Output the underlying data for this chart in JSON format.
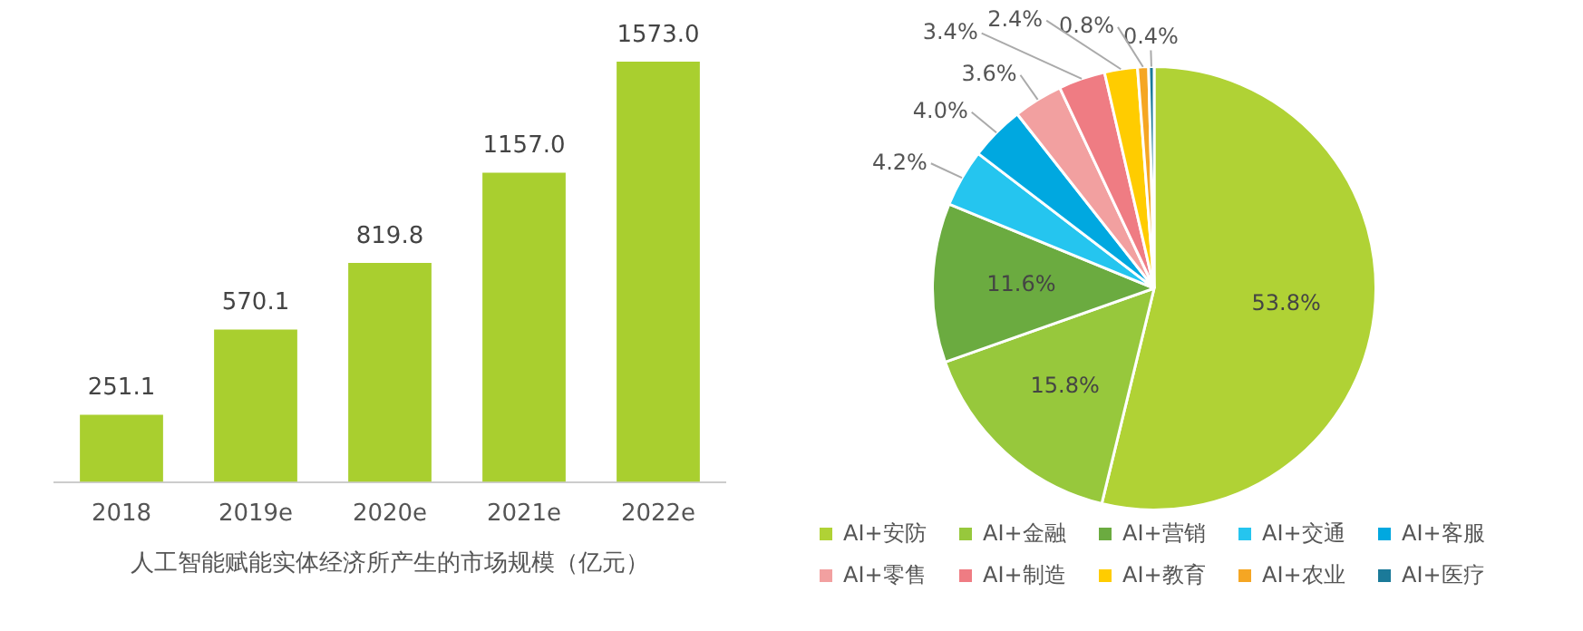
{
  "chart_data": [
    {
      "type": "bar",
      "xlabel": "人工智能赋能实体经济所产生的市场规模（亿元）",
      "categories": [
        "2018",
        "2019e",
        "2020e",
        "2021e",
        "2022e"
      ],
      "values": [
        251.1,
        570.1,
        819.8,
        1157.0,
        1573.0
      ],
      "value_labels": [
        "251.1",
        "570.1",
        "819.8",
        "1157.0",
        "1573.0"
      ],
      "color": "#a9cf2f"
    },
    {
      "type": "pie",
      "categories": [
        "AI+安防",
        "AI+金融",
        "AI+营销",
        "AI+交通",
        "AI+客服",
        "AI+零售",
        "AI+制造",
        "AI+教育",
        "AI+农业",
        "AI+医疗"
      ],
      "values": [
        53.8,
        15.8,
        11.6,
        4.2,
        4.0,
        3.6,
        3.4,
        2.4,
        0.8,
        0.4
      ],
      "value_labels": [
        "53.8%",
        "15.8%",
        "11.6%",
        "4.2%",
        "4.0%",
        "3.6%",
        "3.4%",
        "2.4%",
        "0.8%",
        "0.4%"
      ],
      "colors": [
        "#b0d235",
        "#97c83c",
        "#6bab40",
        "#25c5ef",
        "#00a8e0",
        "#f2a0a0",
        "#ef7c83",
        "#ffcc00",
        "#f5a623",
        "#1b7a99"
      ],
      "legend": "bottom"
    }
  ]
}
